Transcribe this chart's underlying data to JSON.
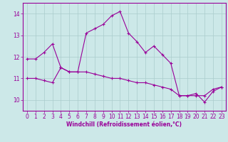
{
  "x": [
    0,
    1,
    2,
    3,
    4,
    5,
    6,
    7,
    8,
    9,
    10,
    11,
    12,
    13,
    14,
    15,
    16,
    17,
    18,
    19,
    20,
    21,
    22,
    23
  ],
  "line1": [
    11.9,
    11.9,
    12.2,
    12.6,
    11.5,
    11.3,
    11.3,
    13.1,
    13.3,
    13.5,
    13.9,
    14.1,
    13.1,
    12.7,
    12.2,
    12.5,
    12.1,
    11.7,
    10.2,
    10.2,
    10.3,
    9.9,
    10.4,
    10.6
  ],
  "line2": [
    11.0,
    11.0,
    10.9,
    10.8,
    11.5,
    11.3,
    11.3,
    11.3,
    11.2,
    11.1,
    11.0,
    11.0,
    10.9,
    10.8,
    10.8,
    10.7,
    10.6,
    10.5,
    10.2,
    10.2,
    10.2,
    10.2,
    10.5,
    10.6
  ],
  "color": "#990099",
  "bg_color": "#cce8e8",
  "grid_color": "#aacccc",
  "xlabel": "Windchill (Refroidissement éolien,°C)",
  "ylim": [
    9.5,
    14.5
  ],
  "xlim": [
    -0.5,
    23.5
  ],
  "yticks": [
    10,
    11,
    12,
    13,
    14
  ],
  "xticks": [
    0,
    1,
    2,
    3,
    4,
    5,
    6,
    7,
    8,
    9,
    10,
    11,
    12,
    13,
    14,
    15,
    16,
    17,
    18,
    19,
    20,
    21,
    22,
    23
  ],
  "linewidth": 0.8,
  "markersize": 3,
  "tick_labelsize": 5.5,
  "xlabel_fontsize": 5.5
}
